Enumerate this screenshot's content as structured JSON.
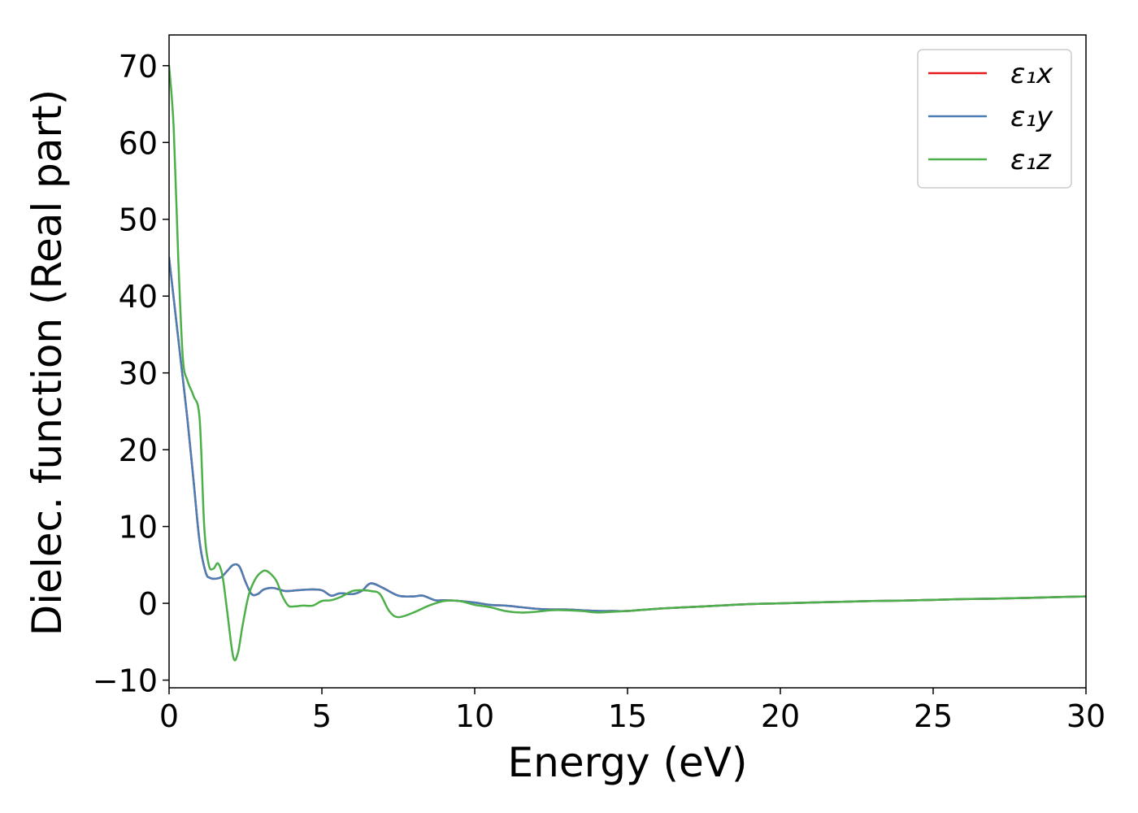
{
  "chart_data": {
    "type": "line",
    "title": "",
    "xlabel": "Energy (eV)",
    "ylabel": "Dielec. function (Real part)",
    "xlim": [
      0,
      30
    ],
    "ylim": [
      -11,
      74
    ],
    "xticks": [
      0,
      5,
      10,
      15,
      20,
      25,
      30
    ],
    "yticks": [
      -10,
      0,
      10,
      20,
      30,
      40,
      50,
      60,
      70
    ],
    "ytick_labels": [
      "−10",
      "0",
      "10",
      "20",
      "30",
      "40",
      "50",
      "60",
      "70"
    ],
    "grid": false,
    "legend_position": "top-right",
    "series": [
      {
        "name": "ε₁x",
        "color": "#e41a1c",
        "x": [
          0,
          0.2,
          0.4,
          0.6,
          0.8,
          1.0,
          1.2,
          1.35,
          1.5,
          1.7,
          1.9,
          2.1,
          2.3,
          2.5,
          2.7,
          2.9,
          3.1,
          3.4,
          3.8,
          4.2,
          4.6,
          5.0,
          5.3,
          5.6,
          6.0,
          6.3,
          6.6,
          7.0,
          7.5,
          8.0,
          8.3,
          8.7,
          9.0,
          9.5,
          10.0,
          10.5,
          11.0,
          11.5,
          12.0,
          12.5,
          13.0,
          13.5,
          14.0,
          14.5,
          15.0,
          16,
          17,
          18,
          19,
          20,
          21,
          22,
          23,
          24,
          25,
          26,
          27,
          28,
          29,
          30
        ],
        "y": [
          45,
          38,
          31,
          24,
          16,
          8,
          4.0,
          3.3,
          3.2,
          3.4,
          4.2,
          5.0,
          4.8,
          2.8,
          1.2,
          1.2,
          1.8,
          2.0,
          1.6,
          1.7,
          1.8,
          1.7,
          1.0,
          1.3,
          1.2,
          1.6,
          2.6,
          2.0,
          1.0,
          0.9,
          1.0,
          0.4,
          0.4,
          0.3,
          0.1,
          -0.2,
          -0.3,
          -0.5,
          -0.7,
          -0.8,
          -0.8,
          -0.9,
          -1.0,
          -1.0,
          -1.0,
          -0.7,
          -0.5,
          -0.3,
          -0.1,
          0.0,
          0.1,
          0.2,
          0.3,
          0.35,
          0.45,
          0.55,
          0.6,
          0.7,
          0.8,
          0.9
        ]
      },
      {
        "name": "ε₁y",
        "color": "#4a7eb5",
        "x": [
          0,
          0.2,
          0.4,
          0.6,
          0.8,
          1.0,
          1.2,
          1.35,
          1.5,
          1.7,
          1.9,
          2.1,
          2.3,
          2.5,
          2.7,
          2.9,
          3.1,
          3.4,
          3.8,
          4.2,
          4.6,
          5.0,
          5.3,
          5.6,
          6.0,
          6.3,
          6.6,
          7.0,
          7.5,
          8.0,
          8.3,
          8.7,
          9.0,
          9.5,
          10.0,
          10.5,
          11.0,
          11.5,
          12.0,
          12.5,
          13.0,
          13.5,
          14.0,
          14.5,
          15.0,
          16,
          17,
          18,
          19,
          20,
          21,
          22,
          23,
          24,
          25,
          26,
          27,
          28,
          29,
          30
        ],
        "y": [
          45,
          38,
          31,
          24,
          16,
          8,
          4.0,
          3.3,
          3.2,
          3.4,
          4.2,
          5.0,
          4.8,
          2.8,
          1.2,
          1.2,
          1.8,
          2.0,
          1.6,
          1.7,
          1.8,
          1.7,
          1.0,
          1.3,
          1.2,
          1.6,
          2.6,
          2.0,
          1.0,
          0.9,
          1.0,
          0.4,
          0.4,
          0.3,
          0.1,
          -0.2,
          -0.3,
          -0.5,
          -0.7,
          -0.8,
          -0.8,
          -0.9,
          -1.0,
          -1.0,
          -1.0,
          -0.7,
          -0.5,
          -0.3,
          -0.1,
          0.0,
          0.1,
          0.2,
          0.3,
          0.35,
          0.45,
          0.55,
          0.6,
          0.7,
          0.8,
          0.9
        ]
      },
      {
        "name": "ε₁z",
        "color": "#4daf4a",
        "x": [
          0,
          0.15,
          0.3,
          0.45,
          0.6,
          0.8,
          1.0,
          1.15,
          1.3,
          1.45,
          1.6,
          1.75,
          1.9,
          2.1,
          2.25,
          2.4,
          2.6,
          2.8,
          3.0,
          3.2,
          3.5,
          3.7,
          3.9,
          4.1,
          4.4,
          4.7,
          5.0,
          5.3,
          5.6,
          6.0,
          6.3,
          6.6,
          6.9,
          7.2,
          7.5,
          8.0,
          8.5,
          9.0,
          9.5,
          10.0,
          10.5,
          11.0,
          11.5,
          12.0,
          12.5,
          13.0,
          13.5,
          14.0,
          14.5,
          15.0,
          16,
          17,
          18,
          19,
          20,
          21,
          22,
          23,
          24,
          25,
          26,
          27,
          28,
          29,
          30
        ],
        "y": [
          70,
          62,
          45,
          32,
          29,
          27,
          24,
          10,
          5,
          4.5,
          5.2,
          3.5,
          -1,
          -7,
          -6.5,
          -3,
          1,
          3,
          4,
          4.2,
          3,
          1,
          -0.3,
          -0.4,
          -0.3,
          -0.3,
          0.3,
          0.4,
          0.8,
          1.6,
          1.7,
          1.6,
          1.2,
          -1.0,
          -1.8,
          -1.2,
          -0.3,
          0.3,
          0.3,
          -0.2,
          -0.5,
          -1.0,
          -1.2,
          -1.1,
          -0.9,
          -0.9,
          -1.0,
          -1.2,
          -1.1,
          -1.0,
          -0.7,
          -0.5,
          -0.3,
          -0.1,
          0.0,
          0.1,
          0.2,
          0.3,
          0.35,
          0.45,
          0.55,
          0.6,
          0.7,
          0.8,
          0.9
        ]
      }
    ]
  }
}
